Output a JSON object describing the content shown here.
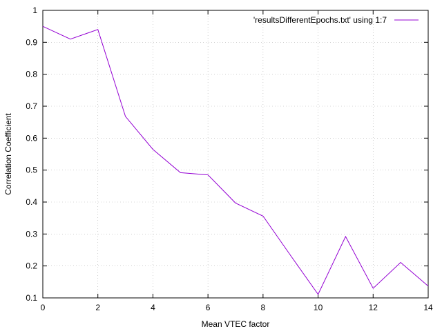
{
  "chart_data": {
    "type": "line",
    "title": "",
    "xlabel": "Mean VTEC factor",
    "ylabel": "Correlation Coefficient",
    "xlim": [
      0,
      14
    ],
    "ylim": [
      0.1,
      1
    ],
    "xticks": [
      0,
      2,
      4,
      6,
      8,
      10,
      12,
      14
    ],
    "xtick_labels": [
      "0",
      "2",
      "4",
      "6",
      "8",
      "10",
      "12",
      "14"
    ],
    "yticks": [
      0.1,
      0.2,
      0.3,
      0.4,
      0.5,
      0.6,
      0.7,
      0.8,
      0.9,
      1
    ],
    "ytick_labels": [
      "0.1",
      "0.2",
      "0.3",
      "0.4",
      "0.5",
      "0.6",
      "0.7",
      "0.8",
      "0.9",
      "1"
    ],
    "grid": true,
    "legend_position": "top-right",
    "series": [
      {
        "name": "'resultsDifferentEpochs.txt' using 1:7",
        "color": "#9400d3",
        "x": [
          0,
          1,
          2,
          3,
          4,
          5,
          6,
          7,
          8,
          9,
          10,
          11,
          12,
          13,
          14
        ],
        "y": [
          0.95,
          0.91,
          0.94,
          0.668,
          0.565,
          0.492,
          0.485,
          0.397,
          0.356,
          0.233,
          0.111,
          0.292,
          0.13,
          0.211,
          0.137
        ]
      }
    ]
  }
}
